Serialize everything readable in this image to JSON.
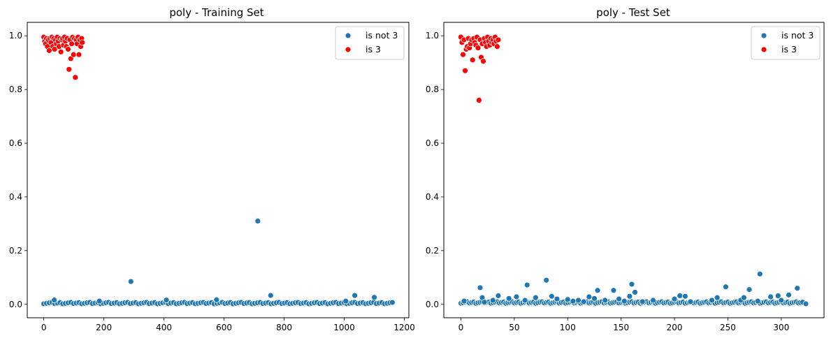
{
  "chart_data": [
    {
      "type": "scatter",
      "title": "poly - Training Set",
      "xlabel": "",
      "ylabel": "",
      "xlim": [
        -55,
        1215
      ],
      "ylim": [
        -0.05,
        1.05
      ],
      "xticks": [
        0,
        200,
        400,
        600,
        800,
        1000,
        1200
      ],
      "yticks": [
        0.0,
        0.2,
        0.4,
        0.6,
        0.8,
        1.0
      ],
      "grid": false,
      "legend": "top-right",
      "series": [
        {
          "name": "is not 3",
          "color": "#1f77b4",
          "pattern": {
            "x_start": 0,
            "x_end": 1160,
            "step": 9,
            "base_y": 0.002
          },
          "points": [
            [
              35,
              0.016
            ],
            [
              185,
              0.012
            ],
            [
              290,
              0.085
            ],
            [
              408,
              0.016
            ],
            [
              575,
              0.017
            ],
            [
              712,
              0.31
            ],
            [
              755,
              0.033
            ],
            [
              1005,
              0.012
            ],
            [
              1035,
              0.033
            ],
            [
              1100,
              0.026
            ],
            [
              1160,
              0.007
            ]
          ]
        },
        {
          "name": "is 3",
          "color": "#ff0000",
          "points": [
            [
              0,
              0.995
            ],
            [
              3,
              0.98
            ],
            [
              6,
              0.97
            ],
            [
              9,
              0.99
            ],
            [
              12,
              0.96
            ],
            [
              15,
              0.985
            ],
            [
              18,
              0.945
            ],
            [
              21,
              0.99
            ],
            [
              24,
              0.975
            ],
            [
              27,
              0.995
            ],
            [
              30,
              0.96
            ],
            [
              33,
              0.99
            ],
            [
              36,
              0.95
            ],
            [
              39,
              0.985
            ],
            [
              42,
              0.97
            ],
            [
              45,
              0.995
            ],
            [
              48,
              0.98
            ],
            [
              51,
              0.96
            ],
            [
              54,
              0.99
            ],
            [
              57,
              0.94
            ],
            [
              60,
              0.985
            ],
            [
              63,
              0.99
            ],
            [
              66,
              0.965
            ],
            [
              69,
              0.995
            ],
            [
              72,
              0.98
            ],
            [
              75,
              0.96
            ],
            [
              78,
              0.99
            ],
            [
              81,
              0.95
            ],
            [
              84,
              0.875
            ],
            [
              87,
              0.985
            ],
            [
              90,
              0.915
            ],
            [
              93,
              0.97
            ],
            [
              96,
              0.995
            ],
            [
              99,
              0.93
            ],
            [
              102,
              0.99
            ],
            [
              105,
              0.845
            ],
            [
              108,
              0.985
            ],
            [
              111,
              0.97
            ],
            [
              114,
              0.995
            ],
            [
              117,
              0.93
            ],
            [
              120,
              0.985
            ],
            [
              123,
              0.96
            ],
            [
              126,
              0.99
            ],
            [
              128,
              0.975
            ]
          ]
        }
      ]
    },
    {
      "type": "scatter",
      "title": "poly - Test Set",
      "xlabel": "",
      "ylabel": "",
      "xlim": [
        -16,
        340
      ],
      "ylim": [
        -0.05,
        1.05
      ],
      "xticks": [
        0,
        50,
        100,
        150,
        200,
        250,
        300
      ],
      "yticks": [
        0.0,
        0.2,
        0.4,
        0.6,
        0.8,
        1.0
      ],
      "grid": false,
      "legend": "top-right",
      "series": [
        {
          "name": "is not 3",
          "color": "#1f77b4",
          "pattern": {
            "x_start": 0,
            "x_end": 323,
            "step": 2,
            "base_y": 0.004
          },
          "points": [
            [
              3,
              0.012
            ],
            [
              18,
              0.062
            ],
            [
              20,
              0.025
            ],
            [
              22,
              0.008
            ],
            [
              30,
              0.015
            ],
            [
              35,
              0.032
            ],
            [
              45,
              0.022
            ],
            [
              52,
              0.028
            ],
            [
              60,
              0.015
            ],
            [
              62,
              0.072
            ],
            [
              70,
              0.025
            ],
            [
              80,
              0.09
            ],
            [
              85,
              0.03
            ],
            [
              90,
              0.02
            ],
            [
              100,
              0.018
            ],
            [
              105,
              0.012
            ],
            [
              110,
              0.015
            ],
            [
              115,
              0.01
            ],
            [
              120,
              0.028
            ],
            [
              125,
              0.022
            ],
            [
              128,
              0.052
            ],
            [
              135,
              0.015
            ],
            [
              143,
              0.052
            ],
            [
              148,
              0.02
            ],
            [
              153,
              0.012
            ],
            [
              158,
              0.03
            ],
            [
              160,
              0.075
            ],
            [
              163,
              0.045
            ],
            [
              170,
              0.01
            ],
            [
              180,
              0.015
            ],
            [
              200,
              0.02
            ],
            [
              205,
              0.032
            ],
            [
              210,
              0.03
            ],
            [
              215,
              0.01
            ],
            [
              235,
              0.015
            ],
            [
              240,
              0.025
            ],
            [
              248,
              0.065
            ],
            [
              262,
              0.015
            ],
            [
              265,
              0.025
            ],
            [
              270,
              0.055
            ],
            [
              278,
              0.012
            ],
            [
              280,
              0.113
            ],
            [
              290,
              0.028
            ],
            [
              297,
              0.032
            ],
            [
              300,
              0.015
            ],
            [
              307,
              0.035
            ],
            [
              315,
              0.06
            ],
            [
              320,
              0.008
            ],
            [
              323,
              0.002
            ]
          ]
        },
        {
          "name": "is 3",
          "color": "#ff0000",
          "points": [
            [
              0,
              0.995
            ],
            [
              1,
              0.975
            ],
            [
              2,
              0.93
            ],
            [
              3,
              0.985
            ],
            [
              4,
              0.87
            ],
            [
              5,
              0.95
            ],
            [
              6,
              0.96
            ],
            [
              7,
              0.99
            ],
            [
              8,
              0.955
            ],
            [
              9,
              0.97
            ],
            [
              10,
              0.985
            ],
            [
              11,
              0.91
            ],
            [
              12,
              0.99
            ],
            [
              13,
              0.975
            ],
            [
              14,
              0.965
            ],
            [
              15,
              0.995
            ],
            [
              16,
              0.955
            ],
            [
              17,
              0.76
            ],
            [
              18,
              0.985
            ],
            [
              19,
              0.92
            ],
            [
              20,
              0.97
            ],
            [
              21,
              0.905
            ],
            [
              22,
              0.99
            ],
            [
              23,
              0.975
            ],
            [
              24,
              0.96
            ],
            [
              25,
              0.995
            ],
            [
              26,
              0.98
            ],
            [
              27,
              0.965
            ],
            [
              28,
              0.99
            ],
            [
              29,
              0.975
            ],
            [
              30,
              0.985
            ],
            [
              31,
              0.97
            ],
            [
              32,
              0.995
            ],
            [
              33,
              0.98
            ],
            [
              34,
              0.96
            ],
            [
              35,
              0.985
            ]
          ]
        }
      ]
    }
  ]
}
